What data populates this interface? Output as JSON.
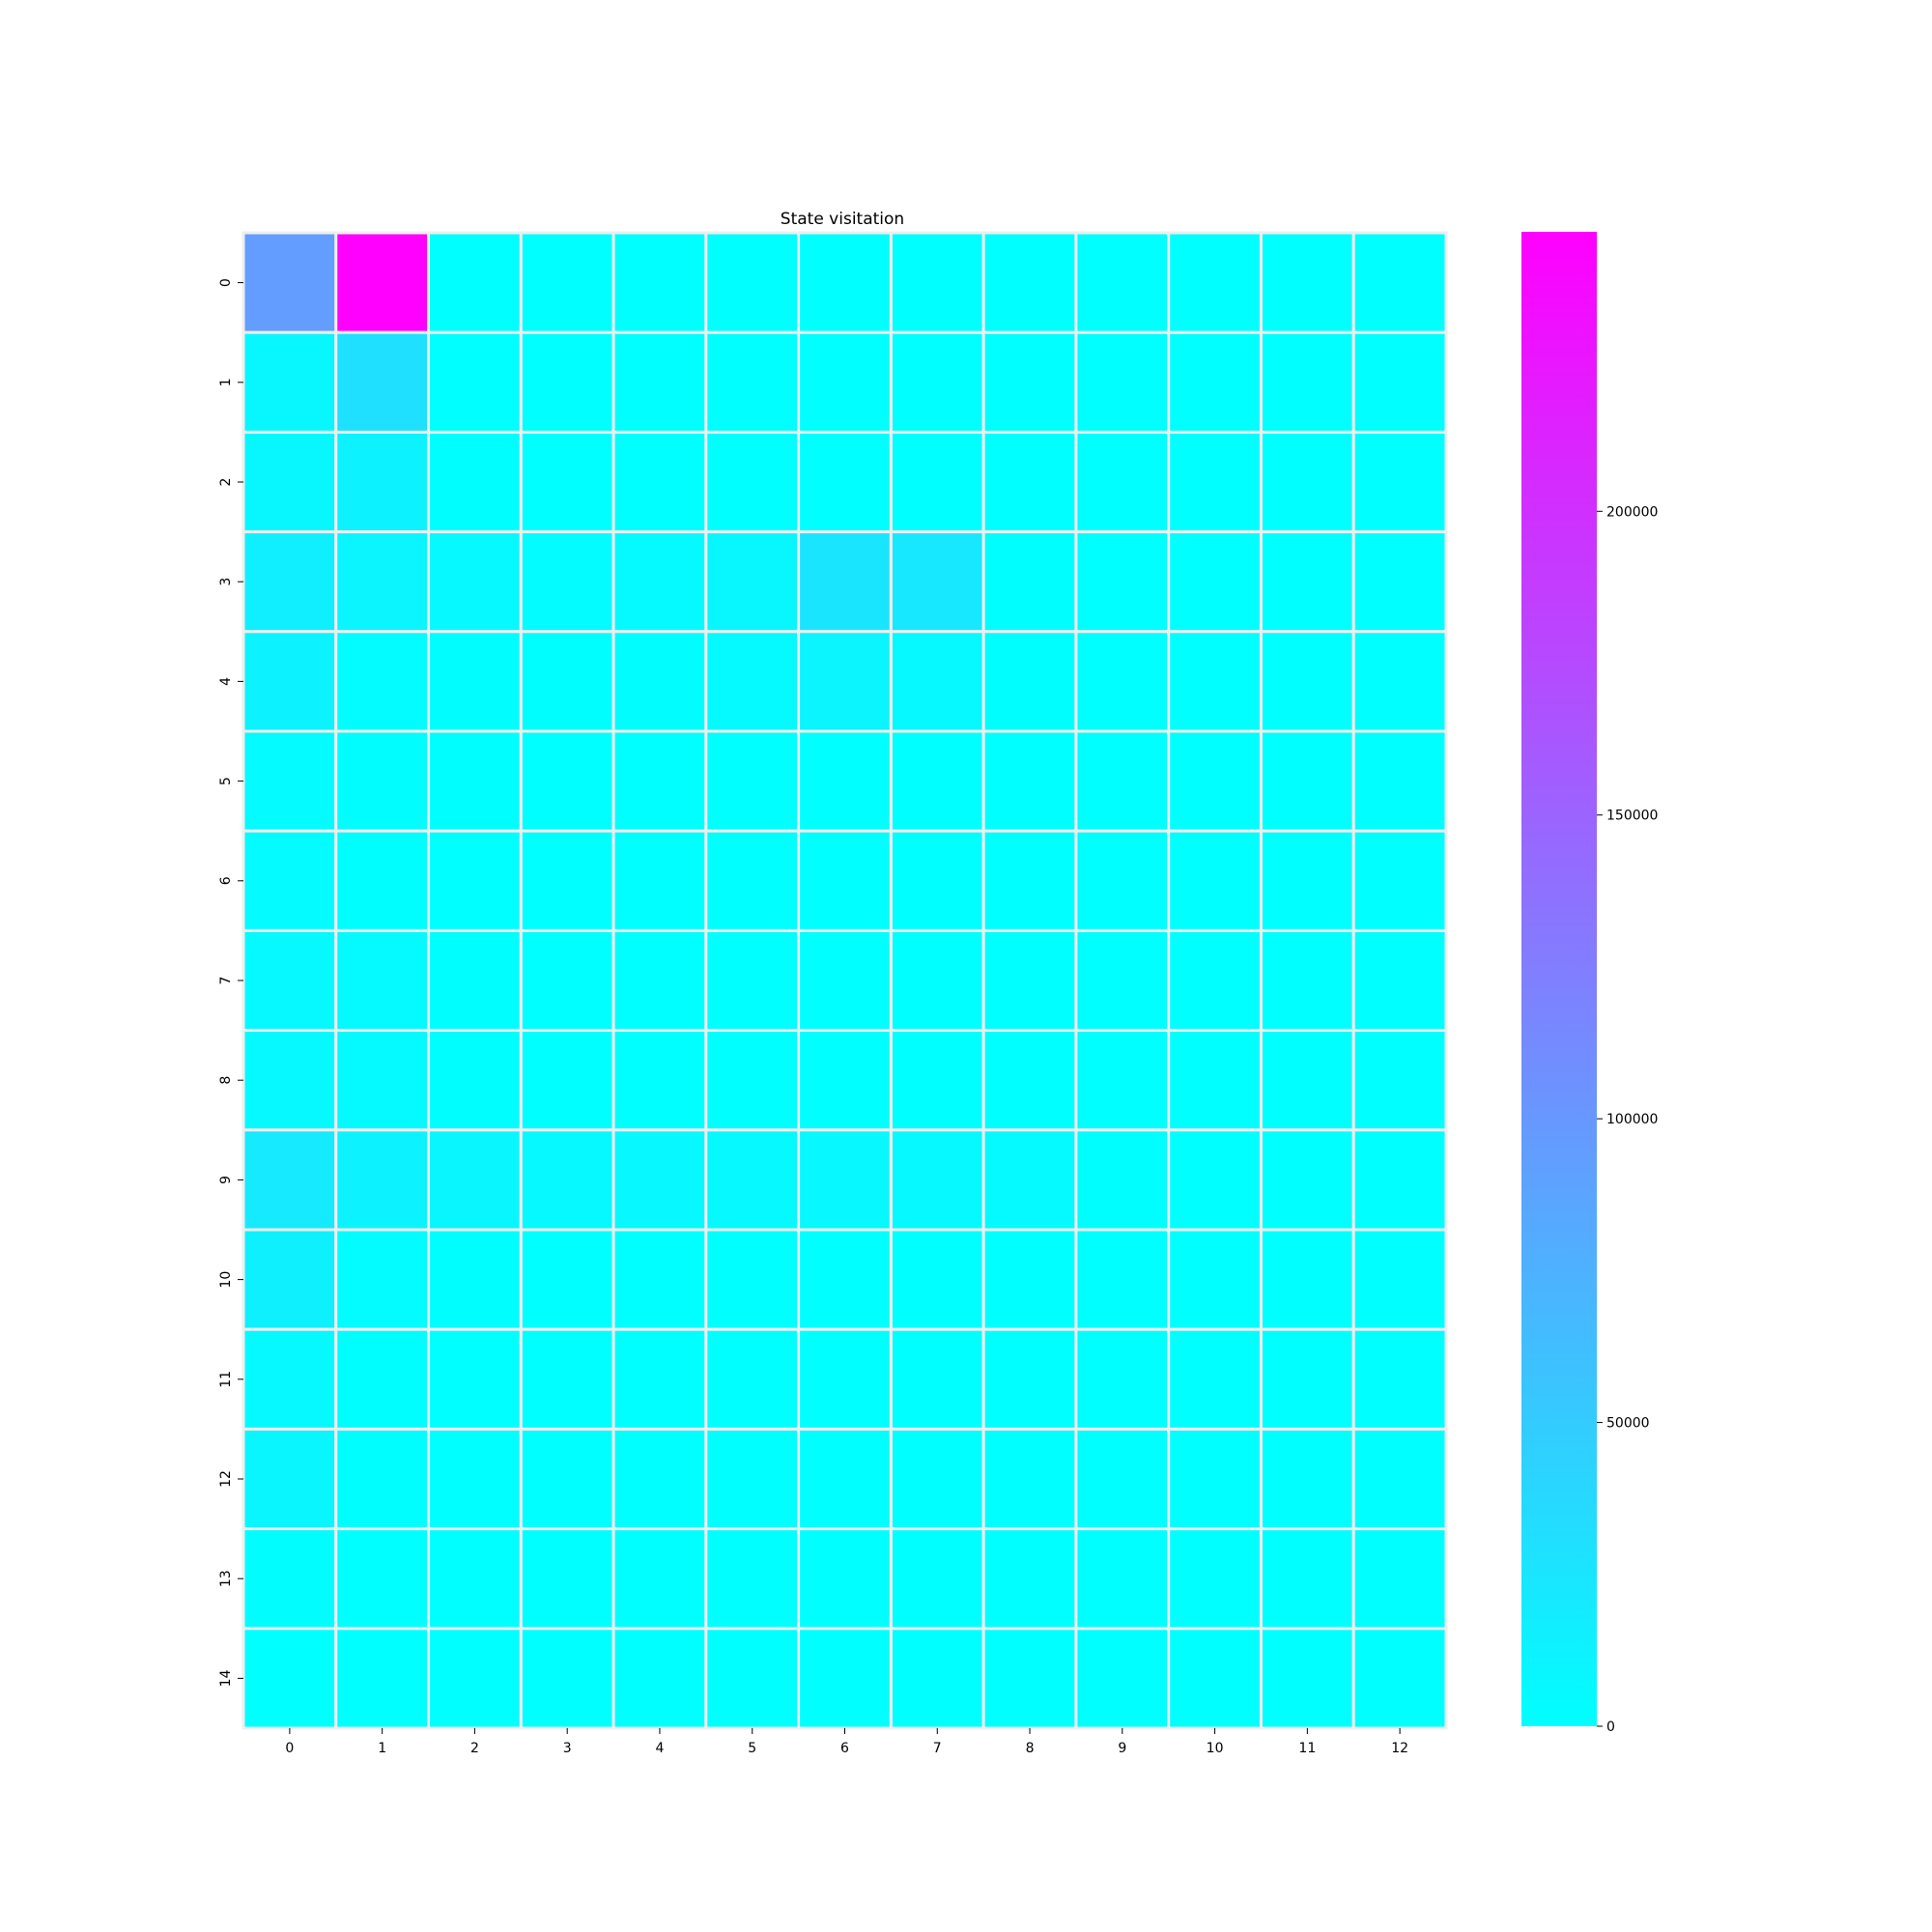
{
  "chart_data": {
    "type": "heatmap",
    "title": "State visitation",
    "xlabel": "",
    "ylabel": "",
    "x_categories": [
      "0",
      "1",
      "2",
      "3",
      "4",
      "5",
      "6",
      "7",
      "8",
      "9",
      "10",
      "11",
      "12"
    ],
    "y_categories": [
      "0",
      "1",
      "2",
      "3",
      "4",
      "5",
      "6",
      "7",
      "8",
      "9",
      "10",
      "11",
      "12",
      "13",
      "14"
    ],
    "values": [
      [
        95000,
        246000,
        0,
        0,
        0,
        0,
        0,
        0,
        0,
        0,
        0,
        0,
        0
      ],
      [
        8000,
        30000,
        0,
        0,
        0,
        0,
        0,
        0,
        0,
        0,
        0,
        0,
        0
      ],
      [
        8000,
        12000,
        1000,
        0,
        0,
        0,
        0,
        0,
        0,
        0,
        0,
        0,
        0
      ],
      [
        15000,
        10000,
        6000,
        3000,
        5000,
        8000,
        25000,
        22000,
        1000,
        0,
        0,
        0,
        0
      ],
      [
        12000,
        3000,
        2000,
        1000,
        2000,
        5000,
        10000,
        6000,
        1000,
        0,
        0,
        0,
        0
      ],
      [
        4000,
        2000,
        1000,
        0,
        0,
        0,
        0,
        0,
        0,
        0,
        0,
        0,
        0
      ],
      [
        4000,
        1000,
        0,
        0,
        0,
        0,
        0,
        0,
        0,
        0,
        0,
        0,
        0
      ],
      [
        6000,
        5000,
        1000,
        0,
        0,
        0,
        0,
        0,
        0,
        0,
        0,
        0,
        0
      ],
      [
        6000,
        5000,
        1000,
        0,
        0,
        0,
        0,
        0,
        0,
        0,
        0,
        0,
        0
      ],
      [
        20000,
        12000,
        9000,
        6000,
        7000,
        6000,
        7000,
        6000,
        5000,
        1000,
        0,
        0,
        0
      ],
      [
        14000,
        3000,
        1000,
        0,
        0,
        0,
        0,
        0,
        0,
        0,
        0,
        0,
        0
      ],
      [
        6000,
        1000,
        0,
        0,
        0,
        0,
        0,
        0,
        0,
        0,
        0,
        0,
        0
      ],
      [
        9000,
        1000,
        0,
        0,
        0,
        0,
        0,
        0,
        0,
        0,
        0,
        0,
        0
      ],
      [
        2000,
        0,
        0,
        0,
        0,
        0,
        0,
        0,
        0,
        0,
        0,
        0,
        0
      ],
      [
        0,
        0,
        0,
        0,
        0,
        0,
        0,
        0,
        0,
        0,
        0,
        0,
        0
      ]
    ],
    "colormap": "cool",
    "colormap_colors": [
      "#00ffff",
      "#ff00ff"
    ],
    "cell_border_color": "#eeeeee",
    "colorbar": {
      "min": 0,
      "max": 246000,
      "ticks": [
        0,
        50000,
        100000,
        150000,
        200000
      ],
      "tick_labels": [
        "0",
        "50000",
        "100000",
        "150000",
        "200000"
      ]
    }
  }
}
